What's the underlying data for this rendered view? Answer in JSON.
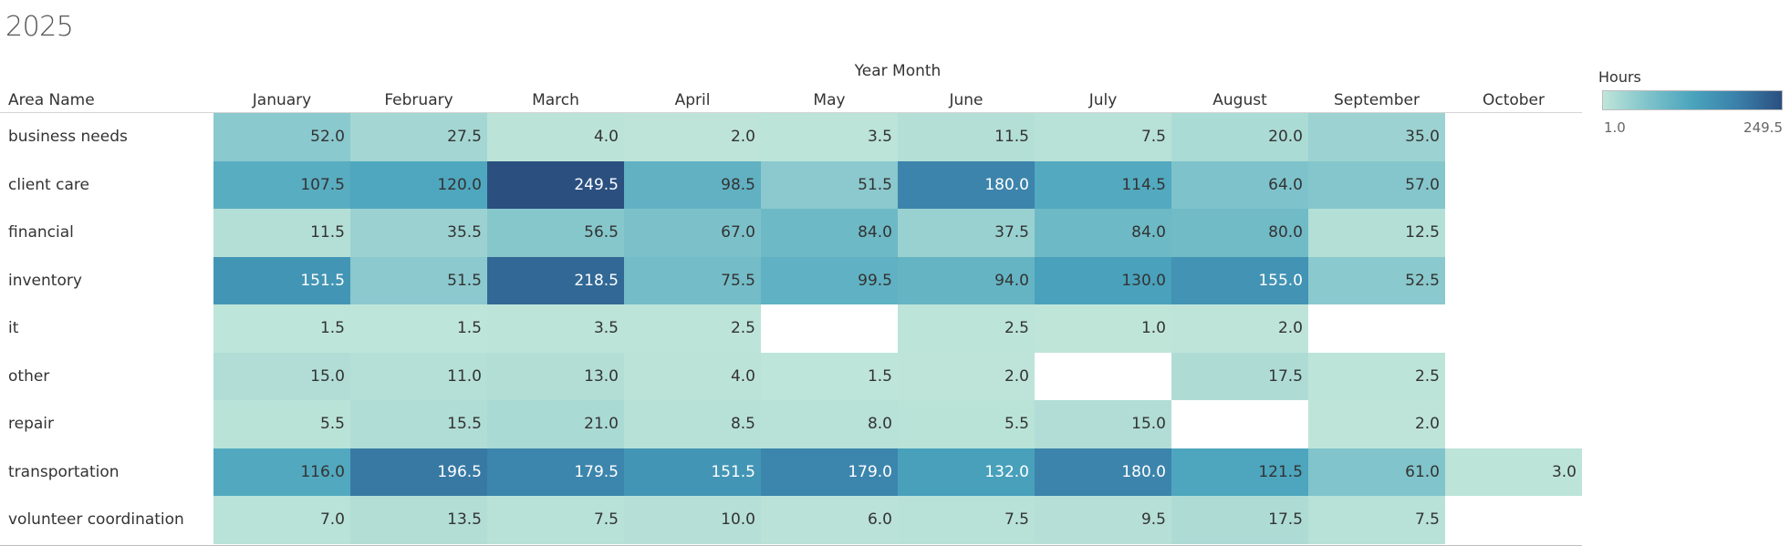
{
  "title": "2025",
  "column_group_label": "Year Month",
  "row_header": "Area Name",
  "legend": {
    "title": "Hours",
    "min_label": "1.0",
    "max_label": "249.5"
  },
  "colors": {
    "low": "#bfe5d9",
    "high": "#2b5080",
    "text_dark": "#333333",
    "text_light": "#ffffff"
  },
  "chart_data": {
    "type": "heatmap",
    "title": "2025",
    "xlabel": "Year Month",
    "ylabel": "Area Name",
    "value_label": "Hours",
    "color_range": [
      1.0,
      249.5
    ],
    "columns": [
      "January",
      "February",
      "March",
      "April",
      "May",
      "June",
      "July",
      "August",
      "September",
      "October"
    ],
    "rows": [
      {
        "name": "business needs",
        "values": [
          52.0,
          27.5,
          4.0,
          2.0,
          3.5,
          11.5,
          7.5,
          20.0,
          35.0,
          null
        ]
      },
      {
        "name": "client care",
        "values": [
          107.5,
          120.0,
          249.5,
          98.5,
          51.5,
          180.0,
          114.5,
          64.0,
          57.0,
          null
        ]
      },
      {
        "name": "financial",
        "values": [
          11.5,
          35.5,
          56.5,
          67.0,
          84.0,
          37.5,
          84.0,
          80.0,
          12.5,
          null
        ]
      },
      {
        "name": "inventory",
        "values": [
          151.5,
          51.5,
          218.5,
          75.5,
          99.5,
          94.0,
          130.0,
          155.0,
          52.5,
          null
        ]
      },
      {
        "name": "it",
        "values": [
          1.5,
          1.5,
          3.5,
          2.5,
          null,
          2.5,
          1.0,
          2.0,
          null,
          null
        ]
      },
      {
        "name": "other",
        "values": [
          15.0,
          11.0,
          13.0,
          4.0,
          1.5,
          2.0,
          null,
          17.5,
          2.5,
          null
        ]
      },
      {
        "name": "repair",
        "values": [
          5.5,
          15.5,
          21.0,
          8.5,
          8.0,
          5.5,
          15.0,
          null,
          2.0,
          null
        ]
      },
      {
        "name": "transportation",
        "values": [
          116.0,
          196.5,
          179.5,
          151.5,
          179.0,
          132.0,
          180.0,
          121.5,
          61.0,
          3.0
        ]
      },
      {
        "name": "volunteer coordination",
        "values": [
          7.0,
          13.5,
          7.5,
          10.0,
          6.0,
          7.5,
          9.5,
          17.5,
          7.5,
          null
        ]
      }
    ]
  }
}
